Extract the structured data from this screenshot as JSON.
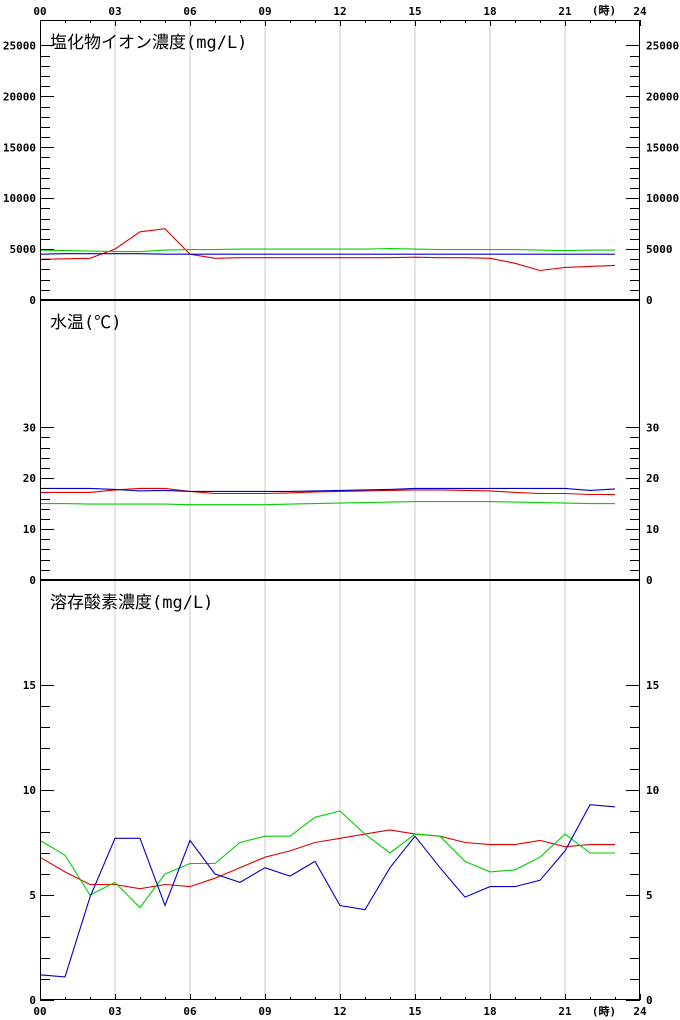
{
  "time_axis": {
    "ticks": [
      "00",
      "03",
      "06",
      "09",
      "12",
      "15",
      "18",
      "21",
      "24"
    ],
    "unit": "(時)"
  },
  "colors": {
    "red": "#e00000",
    "green": "#00d000",
    "blue": "#0000c8",
    "grid": "#c8c8c8",
    "axis": "#000000"
  },
  "chart_data": [
    {
      "type": "line",
      "title": "塩化物イオン濃度(mg/L)",
      "ylim": [
        0,
        27500
      ],
      "yticks": [
        0,
        5000,
        10000,
        15000,
        20000,
        25000
      ],
      "x": [
        0,
        1,
        2,
        3,
        4,
        5,
        6,
        7,
        8,
        9,
        10,
        11,
        12,
        13,
        14,
        15,
        16,
        17,
        18,
        19,
        20,
        21,
        22,
        23
      ],
      "series": [
        {
          "color": "#e00000",
          "values": [
            4000,
            4050,
            4100,
            5000,
            6700,
            7000,
            4500,
            4100,
            4150,
            4150,
            4150,
            4150,
            4150,
            4150,
            4150,
            4200,
            4150,
            4150,
            4100,
            3600,
            2900,
            3200,
            3300,
            3400
          ]
        },
        {
          "color": "#00d000",
          "values": [
            4900,
            4850,
            4800,
            4750,
            4750,
            4900,
            4950,
            4950,
            5000,
            5000,
            5000,
            5000,
            5000,
            5000,
            5050,
            5000,
            4950,
            4950,
            4950,
            4950,
            4900,
            4850,
            4900,
            4900
          ]
        },
        {
          "color": "#0000c8",
          "values": [
            4500,
            4550,
            4550,
            4550,
            4550,
            4500,
            4500,
            4500,
            4500,
            4500,
            4500,
            4500,
            4500,
            4500,
            4500,
            4500,
            4500,
            4500,
            4500,
            4500,
            4500,
            4500,
            4500,
            4500
          ]
        }
      ]
    },
    {
      "type": "line",
      "title": "水温(℃)",
      "ylim": [
        0,
        55
      ],
      "yticks": [
        0,
        10,
        20,
        30
      ],
      "x": [
        0,
        1,
        2,
        3,
        4,
        5,
        6,
        7,
        8,
        9,
        10,
        11,
        12,
        13,
        14,
        15,
        16,
        17,
        18,
        19,
        20,
        21,
        22,
        23
      ],
      "series": [
        {
          "color": "#e00000",
          "values": [
            17.2,
            17.2,
            17.2,
            17.7,
            18.0,
            18.0,
            17.4,
            17.0,
            17.0,
            17.0,
            17.1,
            17.3,
            17.4,
            17.5,
            17.6,
            17.7,
            17.7,
            17.6,
            17.5,
            17.2,
            17.0,
            17.0,
            16.8,
            16.8
          ]
        },
        {
          "color": "#00d000",
          "values": [
            15.0,
            15.0,
            14.9,
            14.9,
            14.9,
            14.9,
            14.8,
            14.8,
            14.8,
            14.8,
            14.9,
            15.0,
            15.1,
            15.2,
            15.3,
            15.4,
            15.4,
            15.4,
            15.4,
            15.3,
            15.2,
            15.1,
            15.0,
            15.0
          ]
        },
        {
          "color": "#0000c8",
          "values": [
            18.0,
            18.0,
            18.0,
            17.8,
            17.5,
            17.6,
            17.4,
            17.4,
            17.4,
            17.4,
            17.4,
            17.5,
            17.6,
            17.7,
            17.8,
            18.0,
            18.0,
            18.0,
            18.0,
            18.0,
            18.0,
            18.0,
            17.6,
            17.9
          ]
        }
      ]
    },
    {
      "type": "line",
      "title": "溶存酸素濃度(mg/L)",
      "ylim": [
        0,
        20
      ],
      "yticks": [
        0,
        5,
        10,
        15
      ],
      "x": [
        0,
        1,
        2,
        3,
        4,
        5,
        6,
        7,
        8,
        9,
        10,
        11,
        12,
        13,
        14,
        15,
        16,
        17,
        18,
        19,
        20,
        21,
        22,
        23
      ],
      "series": [
        {
          "color": "#e00000",
          "values": [
            6.8,
            6.1,
            5.5,
            5.5,
            5.3,
            5.5,
            5.4,
            5.8,
            6.3,
            6.8,
            7.1,
            7.5,
            7.7,
            7.9,
            8.1,
            7.9,
            7.8,
            7.5,
            7.4,
            7.4,
            7.6,
            7.3,
            7.4,
            7.4
          ]
        },
        {
          "color": "#00d000",
          "values": [
            7.6,
            6.9,
            5.0,
            5.6,
            4.4,
            6.0,
            6.5,
            6.5,
            7.5,
            7.8,
            7.8,
            8.7,
            9.0,
            7.9,
            7.0,
            7.9,
            7.8,
            6.6,
            6.1,
            6.2,
            6.8,
            7.9,
            7.0,
            7.0
          ]
        },
        {
          "color": "#0000c8",
          "values": [
            1.2,
            1.1,
            4.9,
            7.7,
            7.7,
            4.5,
            7.6,
            6.0,
            5.6,
            6.3,
            5.9,
            6.6,
            4.5,
            4.3,
            6.3,
            7.8,
            6.3,
            4.9,
            5.4,
            5.4,
            5.7,
            7.1,
            9.3,
            9.2
          ]
        }
      ]
    }
  ]
}
